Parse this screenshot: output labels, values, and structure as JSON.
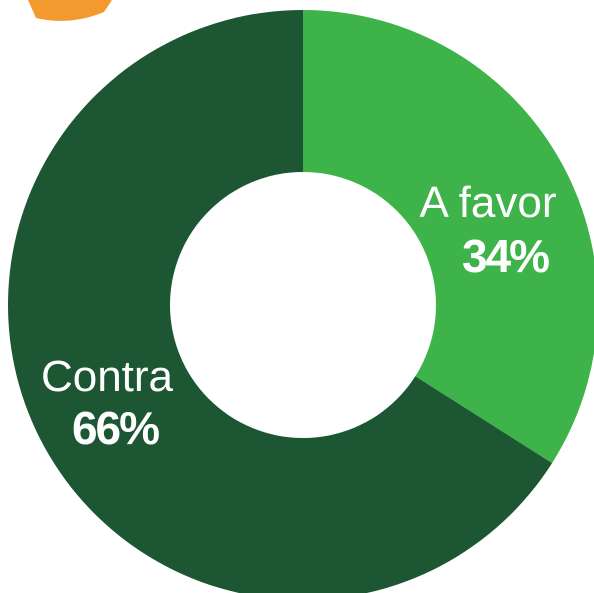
{
  "chart_data": {
    "type": "pie",
    "donut": true,
    "slices": [
      {
        "label": "A favor",
        "value": 34,
        "value_label": "34%",
        "color": "#3db34a"
      },
      {
        "label": "Contra",
        "value": 66,
        "value_label": "66%",
        "color": "#1d5632"
      }
    ]
  },
  "decor": {
    "accent_color": "#f39a2e"
  }
}
